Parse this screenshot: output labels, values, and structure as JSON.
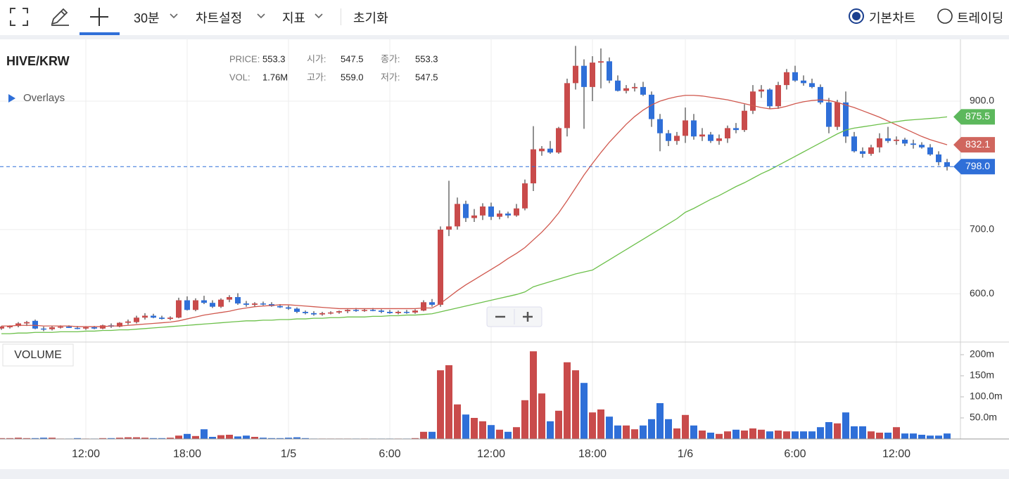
{
  "toolbar": {
    "interval": "30분",
    "settings": "차트설정",
    "indicators": "지표",
    "reset": "초기화",
    "chart_modes": [
      "기본차트",
      "트레이딩"
    ]
  },
  "chart_data": {
    "type": "candlestick",
    "symbol": "HIVE/KRW",
    "overlays": "Overlays",
    "info": {
      "price_label": "PRICE:",
      "price": "553.3",
      "open_label": "시가:",
      "open": "547.5",
      "close_label": "종가:",
      "close": "553.3",
      "vol_label": "VOL:",
      "vol": "1.76M",
      "high_label": "고가:",
      "high": "559.0",
      "low_label": "저가:",
      "low": "547.5"
    },
    "categories": [
      null,
      null,
      null,
      null,
      null,
      null,
      null,
      null,
      null,
      null,
      "12:00",
      null,
      null,
      null,
      null,
      null,
      null,
      null,
      null,
      null,
      null,
      null,
      "18:00",
      null,
      null,
      null,
      null,
      null,
      null,
      null,
      null,
      null,
      null,
      null,
      "1/5",
      null,
      null,
      null,
      null,
      null,
      null,
      null,
      null,
      null,
      null,
      null,
      "6:00",
      null,
      null,
      null,
      null,
      null,
      null,
      null,
      null,
      null,
      null,
      null,
      "12:00",
      null,
      null,
      null,
      null,
      null,
      null,
      null,
      null,
      null,
      null,
      null,
      "18:00",
      null,
      null,
      null,
      null,
      null,
      null,
      null,
      null,
      null,
      null,
      "1/6",
      null,
      null,
      null,
      null,
      null,
      null,
      null,
      null,
      null,
      null,
      null,
      null,
      "6:00",
      null,
      null,
      null,
      null,
      null,
      null,
      null,
      null,
      null,
      null,
      null,
      "12:00",
      null,
      null,
      null,
      null,
      null,
      null
    ],
    "ohlc": [
      [
        546,
        550,
        544,
        549
      ],
      [
        548,
        551,
        546,
        550
      ],
      [
        550,
        556,
        548,
        554
      ],
      [
        554,
        558,
        550,
        556
      ],
      [
        558,
        560,
        545,
        546
      ],
      [
        546,
        549,
        542,
        545
      ],
      [
        545,
        550,
        543,
        548
      ],
      [
        548,
        551,
        546,
        549
      ],
      [
        549,
        551,
        547,
        547
      ],
      [
        547,
        550,
        545,
        546
      ],
      [
        546,
        549,
        544,
        548
      ],
      [
        548,
        550,
        545,
        546
      ],
      [
        546,
        552,
        545,
        551
      ],
      [
        551,
        554,
        547,
        549
      ],
      [
        549,
        556,
        548,
        555
      ],
      [
        555,
        560,
        552,
        557
      ],
      [
        556,
        566,
        554,
        563
      ],
      [
        563,
        570,
        560,
        566
      ],
      [
        566,
        569,
        562,
        563
      ],
      [
        563,
        566,
        560,
        561
      ],
      [
        561,
        565,
        559,
        563
      ],
      [
        563,
        594,
        562,
        590
      ],
      [
        590,
        596,
        574,
        575
      ],
      [
        575,
        593,
        573,
        590
      ],
      [
        590,
        597,
        584,
        586
      ],
      [
        586,
        590,
        578,
        580
      ],
      [
        580,
        593,
        578,
        591
      ],
      [
        591,
        598,
        587,
        595
      ],
      [
        595,
        601,
        583,
        585
      ],
      [
        585,
        589,
        580,
        583
      ],
      [
        583,
        587,
        580,
        585
      ],
      [
        585,
        588,
        582,
        584
      ],
      [
        584,
        587,
        580,
        581
      ],
      [
        581,
        584,
        578,
        579
      ],
      [
        579,
        582,
        575,
        577
      ],
      [
        577,
        579,
        570,
        572
      ],
      [
        572,
        574,
        568,
        570
      ],
      [
        570,
        573,
        566,
        568
      ],
      [
        568,
        572,
        566,
        570
      ],
      [
        570,
        573,
        568,
        571
      ],
      [
        571,
        574,
        569,
        573
      ],
      [
        573,
        576,
        570,
        575
      ],
      [
        575,
        578,
        572,
        574
      ],
      [
        574,
        577,
        572,
        575
      ],
      [
        575,
        578,
        573,
        574
      ],
      [
        574,
        576,
        570,
        572
      ],
      [
        572,
        575,
        569,
        570
      ],
      [
        570,
        574,
        568,
        572
      ],
      [
        572,
        575,
        569,
        571
      ],
      [
        571,
        576,
        569,
        574
      ],
      [
        574,
        590,
        573,
        587
      ],
      [
        587,
        592,
        580,
        583
      ],
      [
        583,
        705,
        580,
        700
      ],
      [
        700,
        776,
        690,
        705
      ],
      [
        705,
        750,
        700,
        740
      ],
      [
        740,
        745,
        712,
        718
      ],
      [
        718,
        732,
        712,
        722
      ],
      [
        722,
        741,
        715,
        736
      ],
      [
        736,
        742,
        715,
        720
      ],
      [
        720,
        730,
        716,
        725
      ],
      [
        725,
        728,
        718,
        722
      ],
      [
        722,
        740,
        720,
        733
      ],
      [
        733,
        778,
        730,
        772
      ],
      [
        772,
        861,
        760,
        825
      ],
      [
        822,
        830,
        815,
        826
      ],
      [
        826,
        838,
        818,
        820
      ],
      [
        820,
        860,
        818,
        858
      ],
      [
        858,
        935,
        845,
        928
      ],
      [
        928,
        986,
        918,
        955
      ],
      [
        955,
        965,
        857,
        922
      ],
      [
        922,
        970,
        900,
        960
      ],
      [
        960,
        982,
        920,
        962
      ],
      [
        962,
        968,
        928,
        932
      ],
      [
        932,
        940,
        915,
        916
      ],
      [
        916,
        925,
        912,
        920
      ],
      [
        920,
        928,
        915,
        922
      ],
      [
        922,
        930,
        908,
        910
      ],
      [
        910,
        915,
        860,
        872
      ],
      [
        872,
        880,
        822,
        850
      ],
      [
        850,
        855,
        830,
        838
      ],
      [
        838,
        852,
        832,
        846
      ],
      [
        846,
        890,
        835,
        870
      ],
      [
        870,
        880,
        840,
        845
      ],
      [
        845,
        858,
        838,
        848
      ],
      [
        848,
        852,
        835,
        838
      ],
      [
        838,
        848,
        832,
        842
      ],
      [
        842,
        862,
        835,
        858
      ],
      [
        858,
        866,
        850,
        855
      ],
      [
        855,
        895,
        852,
        885
      ],
      [
        885,
        925,
        880,
        915
      ],
      [
        915,
        925,
        905,
        918
      ],
      [
        918,
        920,
        888,
        892
      ],
      [
        892,
        930,
        888,
        925
      ],
      [
        925,
        950,
        918,
        945
      ],
      [
        945,
        955,
        930,
        932
      ],
      [
        932,
        940,
        924,
        928
      ],
      [
        928,
        935,
        920,
        922
      ],
      [
        922,
        926,
        895,
        898
      ],
      [
        898,
        905,
        850,
        860
      ],
      [
        860,
        902,
        855,
        898
      ],
      [
        898,
        915,
        835,
        845
      ],
      [
        845,
        852,
        820,
        822
      ],
      [
        822,
        828,
        812,
        818
      ],
      [
        818,
        832,
        815,
        828
      ],
      [
        828,
        850,
        820,
        842
      ],
      [
        842,
        860,
        835,
        838
      ],
      [
        838,
        845,
        832,
        840
      ],
      [
        840,
        843,
        830,
        834
      ],
      [
        834,
        840,
        826,
        832
      ],
      [
        832,
        836,
        826,
        828
      ],
      [
        828,
        833,
        815,
        817
      ],
      [
        817,
        822,
        800,
        805
      ],
      [
        805,
        810,
        792,
        798
      ]
    ],
    "up_color": "#c94b4b",
    "down_color": "#2f6fd8",
    "moving_averages": [
      {
        "color": "#d0584e",
        "values": [
          550,
          550,
          551,
          551,
          551,
          550,
          550,
          550,
          550,
          549,
          549,
          549,
          549,
          550,
          550,
          551,
          552,
          553,
          554,
          555,
          556,
          558,
          561,
          564,
          567,
          569,
          571,
          573,
          576,
          578,
          580,
          581,
          582,
          583,
          583,
          582,
          581,
          580,
          579,
          578,
          577,
          577,
          577,
          577,
          577,
          577,
          577,
          577,
          577,
          577,
          578,
          578,
          585,
          595,
          605,
          614,
          622,
          630,
          638,
          646,
          655,
          663,
          672,
          684,
          696,
          710,
          726,
          745,
          765,
          785,
          803,
          820,
          836,
          850,
          864,
          876,
          886,
          894,
          900,
          904,
          907,
          909,
          909,
          908,
          906,
          904,
          902,
          899,
          896,
          893,
          890,
          888,
          889,
          892,
          896,
          899,
          901,
          902,
          901,
          898,
          894,
          890,
          885,
          880,
          875,
          869,
          863,
          857,
          851,
          845,
          840,
          836,
          832.1
        ]
      },
      {
        "color": "#6cc04a",
        "values": [
          538,
          538,
          539,
          539,
          540,
          540,
          540,
          541,
          541,
          541,
          542,
          542,
          543,
          543,
          544,
          544,
          545,
          546,
          547,
          548,
          549,
          550,
          551,
          552,
          553,
          554,
          555,
          556,
          557,
          558,
          558,
          559,
          559,
          560,
          560,
          561,
          561,
          562,
          562,
          563,
          563,
          564,
          564,
          564,
          565,
          565,
          566,
          566,
          567,
          567,
          568,
          569,
          572,
          575,
          578,
          581,
          584,
          587,
          590,
          593,
          596,
          599,
          603,
          611,
          615,
          619,
          623,
          627,
          631,
          634,
          637,
          645,
          653,
          661,
          669,
          677,
          685,
          693,
          701,
          709,
          717,
          727,
          733,
          740,
          747,
          753,
          760,
          767,
          773,
          780,
          787,
          793,
          800,
          807,
          814,
          821,
          828,
          835,
          842,
          849,
          855,
          858,
          860,
          862,
          864,
          866,
          868,
          870,
          871,
          872,
          873,
          874,
          875.5
        ]
      }
    ],
    "ylim": [
      525,
      994
    ],
    "yticks": [
      {
        "value": 600,
        "label": "600.0"
      },
      {
        "value": 700,
        "label": "700.0"
      },
      {
        "value": 900,
        "label": "900.0"
      }
    ],
    "price_tags": [
      875.5,
      832.1,
      {
        "value": 798,
        "label": "798.0"
      }
    ],
    "price_tag_colors": [
      "#5cb85c",
      "#d0665e",
      "#2f6fd8"
    ],
    "grid": true,
    "volume": {
      "title": "VOLUME",
      "values": [
        2,
        2,
        3,
        2,
        2,
        3,
        3,
        1,
        1,
        2,
        1,
        1,
        2,
        2,
        3,
        4,
        4,
        3,
        2,
        2,
        3,
        8,
        12,
        7,
        23,
        5,
        9,
        10,
        6,
        8,
        5,
        3,
        2,
        2,
        3,
        4,
        2,
        1,
        1,
        1,
        1,
        1,
        1,
        1,
        1,
        1,
        1,
        1,
        1,
        2,
        17,
        17,
        163,
        175,
        82,
        58,
        50,
        42,
        33,
        22,
        17,
        28,
        92,
        208,
        108,
        42,
        67,
        182,
        163,
        133,
        63,
        70,
        53,
        32,
        32,
        23,
        32,
        47,
        85,
        47,
        25,
        57,
        32,
        20,
        15,
        12,
        18,
        22,
        20,
        25,
        22,
        18,
        20,
        18,
        18,
        18,
        18,
        28,
        40,
        37,
        63,
        30,
        30,
        18,
        15,
        15,
        28,
        13,
        13,
        10,
        8,
        8,
        13
      ],
      "ylim": [
        0,
        230
      ],
      "yticks": [
        {
          "value": 200,
          "label": "200m"
        },
        {
          "value": 150,
          "label": "150m"
        },
        {
          "value": 100,
          "label": "100.0m"
        },
        {
          "value": 50,
          "label": "50.0m"
        }
      ]
    }
  }
}
